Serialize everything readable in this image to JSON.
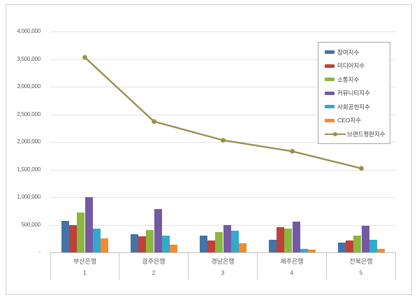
{
  "chart_data": {
    "type": "bar",
    "subtype": "grouped-bars-with-line-overlay",
    "title": "",
    "categories": [
      "부산은행",
      "광주은행",
      "경남은행",
      "제주은행",
      "전북은행"
    ],
    "category_ranks": [
      "1",
      "2",
      "3",
      "4",
      "5"
    ],
    "series": [
      {
        "name": "참여지수",
        "type": "bar",
        "color": "#4573a7",
        "values": [
          570000,
          330000,
          300000,
          230000,
          180000
        ]
      },
      {
        "name": "미디어지수",
        "type": "bar",
        "color": "#bf4138",
        "values": [
          490000,
          290000,
          220000,
          450000,
          210000
        ]
      },
      {
        "name": "소통지수",
        "type": "bar",
        "color": "#8cb63f",
        "values": [
          720000,
          410000,
          370000,
          430000,
          300000
        ]
      },
      {
        "name": "커뮤니티지수",
        "type": "bar",
        "color": "#7459a4",
        "values": [
          1000000,
          790000,
          500000,
          560000,
          480000
        ]
      },
      {
        "name": "사회공헌지수",
        "type": "bar",
        "color": "#35a9cb",
        "values": [
          430000,
          310000,
          390000,
          60000,
          230000
        ]
      },
      {
        "name": "CEO지수",
        "type": "bar",
        "color": "#f08c2e",
        "values": [
          250000,
          140000,
          160000,
          50000,
          60000
        ]
      },
      {
        "name": "브랜드평판지수",
        "type": "line",
        "color": "#98904f",
        "values": [
          3530000,
          2370000,
          2030000,
          1830000,
          1520000
        ]
      }
    ],
    "xlabel": "",
    "ylabel": "",
    "ylim": [
      0,
      4000000
    ],
    "y_step": 500000,
    "y_tick_labels": [
      "4,000,000",
      "3,500,000",
      "3,000,000",
      "2,500,000",
      "2,000,000",
      "1,500,000",
      "1,000,000",
      "500,000",
      "-"
    ],
    "grid": true,
    "legend_position": "top-right"
  }
}
